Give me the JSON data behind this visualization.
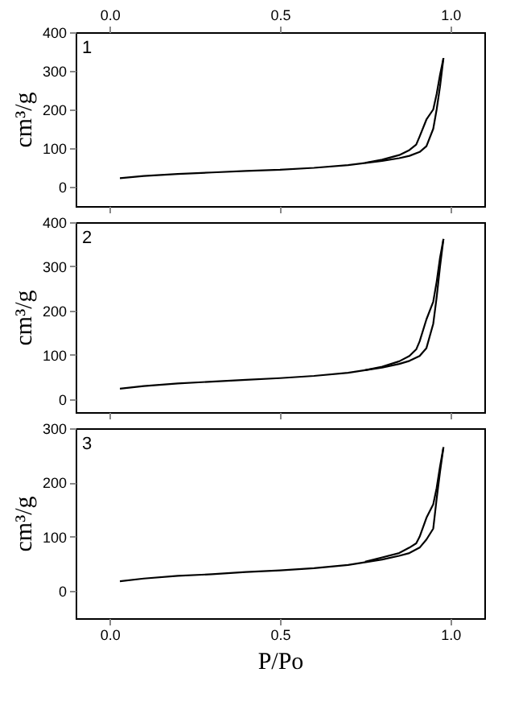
{
  "chart_data": [
    {
      "type": "line",
      "ylabel": "cm³/g",
      "annotations": [
        "1"
      ],
      "xlim": [
        -0.1,
        1.1
      ],
      "x2lim": [
        -0.1,
        1.1
      ],
      "x2ticks": [
        {
          "value": 0,
          "label": "0.0"
        },
        {
          "value": 0.5,
          "label": "0.5"
        },
        {
          "value": 1,
          "label": "1.0"
        }
      ],
      "ylim": [
        -50,
        400
      ],
      "yticks": [
        0,
        100,
        200,
        300,
        400
      ],
      "series": [
        {
          "color": "#000000",
          "x": [
            0.03,
            0.1,
            0.2,
            0.3,
            0.4,
            0.5,
            0.6,
            0.7,
            0.8,
            0.85,
            0.88,
            0.91,
            0.93,
            0.95,
            0.96,
            0.97,
            0.98
          ],
          "values": [
            22,
            28,
            33,
            37,
            41,
            44,
            49,
            56,
            67,
            74,
            80,
            90,
            105,
            150,
            200,
            260,
            333
          ]
        },
        {
          "color": "#000000",
          "x": [
            0.98,
            0.97,
            0.96,
            0.95,
            0.93,
            0.91,
            0.9,
            0.88,
            0.85,
            0.8,
            0.75
          ],
          "values": [
            333,
            290,
            240,
            200,
            174,
            130,
            109,
            95,
            82,
            70,
            62
          ]
        }
      ]
    },
    {
      "type": "line",
      "ylabel": "cm³/g",
      "annotations": [
        "2"
      ],
      "xlim": [
        -0.1,
        1.1
      ],
      "xticks": [
        0,
        0.5,
        1
      ],
      "tick_labels": "y",
      "ylim": [
        -30,
        400
      ],
      "yticks": [
        0,
        100,
        200,
        300,
        400
      ],
      "series": [
        {
          "color": "#000000",
          "x": [
            0.03,
            0.1,
            0.2,
            0.3,
            0.4,
            0.5,
            0.6,
            0.7,
            0.8,
            0.85,
            0.88,
            0.91,
            0.93,
            0.95,
            0.96,
            0.97,
            0.98
          ],
          "values": [
            23,
            29,
            35,
            39,
            43,
            47,
            52,
            59,
            71,
            79,
            86,
            97,
            115,
            170,
            230,
            300,
            362
          ]
        },
        {
          "color": "#000000",
          "x": [
            0.98,
            0.97,
            0.96,
            0.95,
            0.93,
            0.91,
            0.9,
            0.88,
            0.85,
            0.8,
            0.75
          ],
          "values": [
            362,
            320,
            265,
            220,
            180,
            130,
            112,
            97,
            85,
            73,
            65
          ]
        }
      ]
    },
    {
      "type": "line",
      "xlabel": "P/Po",
      "ylabel": "cm³/g",
      "annotations": [
        "3"
      ],
      "xlim": [
        -0.1,
        1.1
      ],
      "xticks": [
        {
          "value": 0,
          "label": "0.0"
        },
        {
          "value": 0.5,
          "label": "0.5"
        },
        {
          "value": 1,
          "label": "1.0"
        }
      ],
      "ylim": [
        -50,
        300
      ],
      "yticks": [
        0,
        100,
        200,
        300
      ],
      "series": [
        {
          "color": "#000000",
          "x": [
            0.03,
            0.1,
            0.2,
            0.3,
            0.4,
            0.5,
            0.6,
            0.7,
            0.8,
            0.85,
            0.88,
            0.91,
            0.93,
            0.95,
            0.96,
            0.97,
            0.98
          ],
          "values": [
            18,
            23,
            28,
            31,
            35,
            38,
            42,
            48,
            58,
            65,
            70,
            80,
            95,
            115,
            170,
            220,
            265
          ]
        },
        {
          "color": "#000000",
          "x": [
            0.98,
            0.97,
            0.96,
            0.95,
            0.93,
            0.91,
            0.9,
            0.88,
            0.85,
            0.8,
            0.75
          ],
          "values": [
            265,
            230,
            190,
            160,
            135,
            100,
            88,
            80,
            70,
            62,
            54
          ]
        }
      ]
    }
  ]
}
